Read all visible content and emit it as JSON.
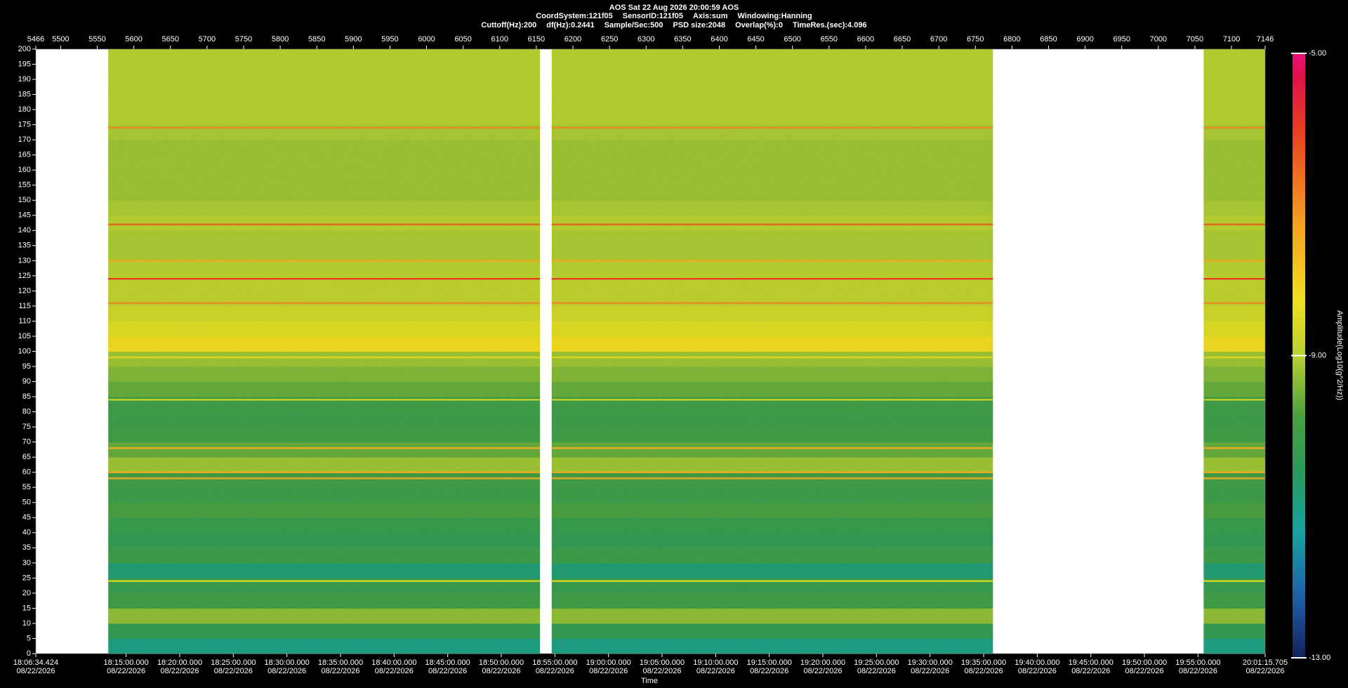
{
  "chart_data": {
    "type": "spectrogram",
    "title": "AOS  Sat 22 Aug 2026 20:00:59  AOS",
    "info_line1": [
      "CoordSystem:121f05",
      "SensorID:121f05",
      "Axis:sum",
      "Windowing:Hanning"
    ],
    "info_line2": [
      "Cuttoff(Hz):200",
      "df(Hz):0.2441",
      "Sample/Sec:500",
      "PSD size:2048",
      "Overlap(%):0",
      "TimeRes.(sec):4.096"
    ],
    "xlabel": "Time",
    "colorbar_label": "Amplitude(Log10(g^2/Hz))",
    "xlim": [
      5466,
      7146
    ],
    "xticks": [
      5466,
      5500,
      5550,
      5600,
      5650,
      5700,
      5750,
      5800,
      5850,
      5900,
      5950,
      6000,
      6050,
      6100,
      6150,
      6200,
      6250,
      6300,
      6350,
      6400,
      6450,
      6500,
      6550,
      6600,
      6650,
      6700,
      6750,
      6800,
      6850,
      6900,
      6950,
      7000,
      7050,
      7100,
      7146
    ],
    "x2lim": [
      0,
      6881.281
    ],
    "x2ticks": [
      {
        "value": 0,
        "label": "18:06:34.424"
      },
      {
        "value": 505.576,
        "label": "18:15:00.000"
      },
      {
        "value": 805.576,
        "label": "18:20:00.000"
      },
      {
        "value": 1105.576,
        "label": "18:25:00.000"
      },
      {
        "value": 1405.576,
        "label": "18:30:00.000"
      },
      {
        "value": 1705.576,
        "label": "18:35:00.000"
      },
      {
        "value": 2005.576,
        "label": "18:40:00.000"
      },
      {
        "value": 2305.576,
        "label": "18:45:00.000"
      },
      {
        "value": 2605.576,
        "label": "18:50:00.000"
      },
      {
        "value": 2905.576,
        "label": "18:55:00.000"
      },
      {
        "value": 3205.576,
        "label": "19:00:00.000"
      },
      {
        "value": 3505.576,
        "label": "19:05:00.000"
      },
      {
        "value": 3805.576,
        "label": "19:10:00.000"
      },
      {
        "value": 4105.576,
        "label": "19:15:00.000"
      },
      {
        "value": 4405.576,
        "label": "19:20:00.000"
      },
      {
        "value": 4705.576,
        "label": "19:25:00.000"
      },
      {
        "value": 5005.576,
        "label": "19:30:00.000"
      },
      {
        "value": 5305.576,
        "label": "19:35:00.000"
      },
      {
        "value": 5605.576,
        "label": "19:40:00.000"
      },
      {
        "value": 5905.576,
        "label": "19:45:00.000"
      },
      {
        "value": 6205.576,
        "label": "19:50:00.000"
      },
      {
        "value": 6505.576,
        "label": "19:55:00.000"
      },
      {
        "value": 6881.281,
        "label": "20:01:15.705"
      }
    ],
    "x2tick_date": "08/22/2026",
    "ylim": [
      0,
      200
    ],
    "yticks": [
      0,
      5,
      10,
      15,
      20,
      25,
      30,
      35,
      40,
      45,
      50,
      55,
      60,
      65,
      70,
      75,
      80,
      85,
      90,
      95,
      100,
      105,
      110,
      115,
      120,
      125,
      130,
      135,
      140,
      145,
      150,
      155,
      160,
      165,
      170,
      175,
      180,
      185,
      190,
      195,
      200
    ],
    "clim": [
      -13,
      -5
    ],
    "cticks": [
      {
        "value": -5,
        "label": "-5.00"
      },
      {
        "value": -9,
        "label": "-9.00"
      },
      {
        "value": -13,
        "label": "-13.00"
      }
    ],
    "segments": [
      [
        5565,
        6155
      ],
      [
        6171,
        6774
      ],
      [
        7062,
        7146
      ]
    ],
    "freq_bins": [
      0,
      5,
      10,
      15,
      20,
      25,
      30,
      35,
      40,
      45,
      50,
      55,
      60,
      65,
      70,
      75,
      80,
      85,
      90,
      95,
      100,
      105,
      110,
      115,
      120,
      125,
      130,
      135,
      140,
      145,
      150,
      155,
      160,
      165,
      170,
      175,
      180,
      185,
      190,
      195,
      200
    ],
    "amplitude": [
      -11.0,
      -10.3,
      -9.3,
      -10.0,
      -10.2,
      -10.8,
      -10.1,
      -10.3,
      -10.2,
      -9.8,
      -10.1,
      -10.0,
      -9.2,
      -9.6,
      -10.0,
      -10.1,
      -10.0,
      -9.6,
      -9.4,
      -9.2,
      -8.2,
      -8.5,
      -8.7,
      -8.9,
      -8.9,
      -9.0,
      -9.1,
      -9.1,
      -9.0,
      -9.1,
      -9.2,
      -9.2,
      -9.2,
      -9.2,
      -9.1,
      -9.0,
      -9.0,
      -9.0,
      -9.0,
      -9.0
    ],
    "tones": [
      {
        "freq": 174,
        "amplitude": -7
      },
      {
        "freq": 142,
        "amplitude": -6.5
      },
      {
        "freq": 130,
        "amplitude": -7.5
      },
      {
        "freq": 124,
        "amplitude": -6
      },
      {
        "freq": 116,
        "amplitude": -7
      },
      {
        "freq": 98,
        "amplitude": -8.5
      },
      {
        "freq": 84,
        "amplitude": -8.7
      },
      {
        "freq": 68,
        "amplitude": -7.5
      },
      {
        "freq": 60,
        "amplitude": -7.5
      },
      {
        "freq": 58,
        "amplitude": -7.5
      },
      {
        "freq": 24,
        "amplitude": -8.5
      }
    ]
  }
}
